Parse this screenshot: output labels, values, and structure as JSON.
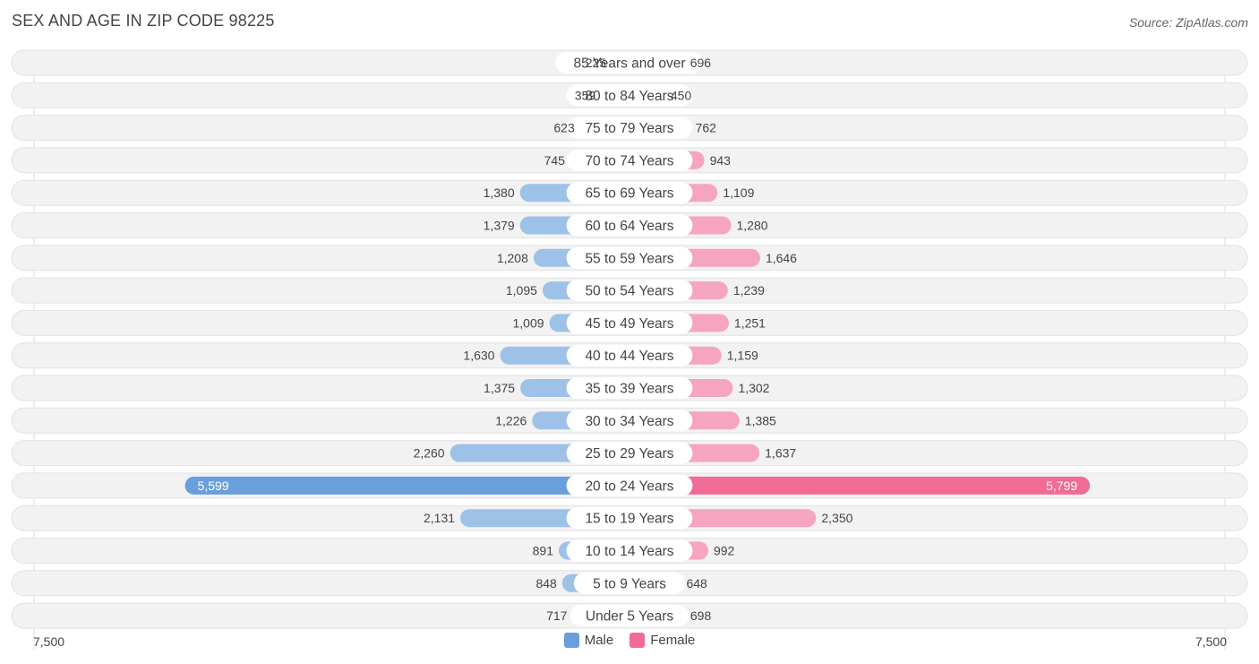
{
  "header": {
    "title": "SEX AND AGE IN ZIP CODE 98225",
    "source": "Source: ZipAtlas.com"
  },
  "axis": {
    "left_label": "7,500",
    "right_label": "7,500"
  },
  "legend": {
    "male_label": "Male",
    "female_label": "Female"
  },
  "colors": {
    "male": "#9ec1e8",
    "male_highlight": "#6a9fdb",
    "female": "#f5a5bf",
    "female_highlight": "#f06b95",
    "row_bg": "#f2f2f2"
  },
  "chart_data": {
    "type": "bar",
    "orientation": "horizontal-diverging",
    "title": "SEX AND AGE IN ZIP CODE 98225",
    "xlim": [
      -7500,
      7500
    ],
    "categories": [
      "85 Years and over",
      "80 to 84 Years",
      "75 to 79 Years",
      "70 to 74 Years",
      "65 to 69 Years",
      "60 to 64 Years",
      "55 to 59 Years",
      "50 to 54 Years",
      "45 to 49 Years",
      "40 to 44 Years",
      "35 to 39 Years",
      "30 to 34 Years",
      "25 to 29 Years",
      "20 to 24 Years",
      "15 to 19 Years",
      "10 to 14 Years",
      "5 to 9 Years",
      "Under 5 Years"
    ],
    "series": [
      {
        "name": "Male",
        "values": [
          225,
          359,
          623,
          745,
          1380,
          1379,
          1208,
          1095,
          1009,
          1630,
          1375,
          1226,
          2260,
          5599,
          2131,
          891,
          848,
          717
        ],
        "labels": [
          "225",
          "359",
          "623",
          "745",
          "1,380",
          "1,379",
          "1,208",
          "1,095",
          "1,009",
          "1,630",
          "1,375",
          "1,226",
          "2,260",
          "5,599",
          "2,131",
          "891",
          "848",
          "717"
        ]
      },
      {
        "name": "Female",
        "values": [
          696,
          450,
          762,
          943,
          1109,
          1280,
          1646,
          1239,
          1251,
          1159,
          1302,
          1385,
          1637,
          5799,
          2350,
          992,
          648,
          698
        ],
        "labels": [
          "696",
          "450",
          "762",
          "943",
          "1,109",
          "1,280",
          "1,646",
          "1,239",
          "1,251",
          "1,159",
          "1,302",
          "1,385",
          "1,637",
          "5,799",
          "2,350",
          "992",
          "648",
          "698"
        ]
      }
    ],
    "legend_position": "bottom-center"
  }
}
